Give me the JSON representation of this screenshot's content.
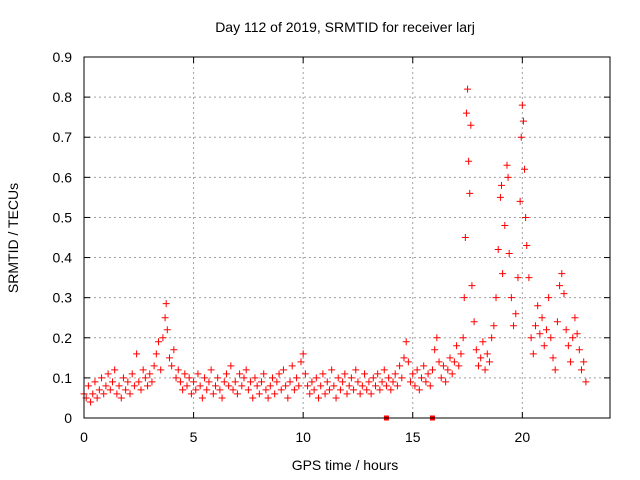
{
  "chart_data": {
    "type": "scatter",
    "title": "Day 112 of 2019, SRMTID for receiver larj",
    "xlabel": "GPS time / hours",
    "ylabel": "SRMTID / TECUs",
    "xlim": [
      0,
      24
    ],
    "ylim": [
      0,
      0.9
    ],
    "xticks": [
      "0",
      "5",
      "10",
      "15",
      "20"
    ],
    "xtick_values": [
      0,
      5,
      10,
      15,
      20
    ],
    "yticks": [
      "0",
      "0.1",
      "0.2",
      "0.3",
      "0.4",
      "0.5",
      "0.6",
      "0.7",
      "0.8",
      "0.9"
    ],
    "ytick_values": [
      0,
      0.1,
      0.2,
      0.3,
      0.4,
      0.5,
      0.6,
      0.7,
      0.8,
      0.9
    ],
    "grid": true,
    "marker": "+",
    "color": "#ff0000",
    "series": [
      {
        "name": "SRMTID",
        "points": [
          [
            0.0,
            0.06
          ],
          [
            0.1,
            0.05
          ],
          [
            0.2,
            0.08
          ],
          [
            0.3,
            0.04
          ],
          [
            0.4,
            0.06
          ],
          [
            0.5,
            0.09
          ],
          [
            0.6,
            0.05
          ],
          [
            0.7,
            0.07
          ],
          [
            0.8,
            0.1
          ],
          [
            0.9,
            0.06
          ],
          [
            1.0,
            0.08
          ],
          [
            1.1,
            0.11
          ],
          [
            1.2,
            0.07
          ],
          [
            1.3,
            0.09
          ],
          [
            1.4,
            0.12
          ],
          [
            1.5,
            0.06
          ],
          [
            1.6,
            0.08
          ],
          [
            1.7,
            0.05
          ],
          [
            1.8,
            0.1
          ],
          [
            1.9,
            0.07
          ],
          [
            2.0,
            0.09
          ],
          [
            2.1,
            0.06
          ],
          [
            2.2,
            0.11
          ],
          [
            2.3,
            0.08
          ],
          [
            2.4,
            0.16
          ],
          [
            2.5,
            0.09
          ],
          [
            2.6,
            0.07
          ],
          [
            2.7,
            0.12
          ],
          [
            2.8,
            0.1
          ],
          [
            2.9,
            0.08
          ],
          [
            3.0,
            0.11
          ],
          [
            3.1,
            0.09
          ],
          [
            3.2,
            0.13
          ],
          [
            3.3,
            0.16
          ],
          [
            3.4,
            0.19
          ],
          [
            3.5,
            0.12
          ],
          [
            3.6,
            0.2
          ],
          [
            3.7,
            0.25
          ],
          [
            3.75,
            0.285
          ],
          [
            3.8,
            0.22
          ],
          [
            3.9,
            0.15
          ],
          [
            4.0,
            0.13
          ],
          [
            4.1,
            0.17
          ],
          [
            4.2,
            0.1
          ],
          [
            4.3,
            0.12
          ],
          [
            4.4,
            0.09
          ],
          [
            4.5,
            0.07
          ],
          [
            4.6,
            0.11
          ],
          [
            4.7,
            0.08
          ],
          [
            4.8,
            0.1
          ],
          [
            4.9,
            0.06
          ],
          [
            5.0,
            0.09
          ],
          [
            5.1,
            0.07
          ],
          [
            5.2,
            0.11
          ],
          [
            5.3,
            0.08
          ],
          [
            5.4,
            0.05
          ],
          [
            5.5,
            0.1
          ],
          [
            5.6,
            0.07
          ],
          [
            5.7,
            0.09
          ],
          [
            5.8,
            0.12
          ],
          [
            5.9,
            0.06
          ],
          [
            6.0,
            0.08
          ],
          [
            6.1,
            0.1
          ],
          [
            6.2,
            0.07
          ],
          [
            6.3,
            0.05
          ],
          [
            6.4,
            0.09
          ],
          [
            6.5,
            0.11
          ],
          [
            6.6,
            0.08
          ],
          [
            6.7,
            0.13
          ],
          [
            6.8,
            0.07
          ],
          [
            6.9,
            0.09
          ],
          [
            7.0,
            0.06
          ],
          [
            7.1,
            0.11
          ],
          [
            7.2,
            0.08
          ],
          [
            7.3,
            0.1
          ],
          [
            7.4,
            0.12
          ],
          [
            7.5,
            0.07
          ],
          [
            7.6,
            0.09
          ],
          [
            7.7,
            0.05
          ],
          [
            7.8,
            0.1
          ],
          [
            7.9,
            0.08
          ],
          [
            8.0,
            0.06
          ],
          [
            8.1,
            0.09
          ],
          [
            8.2,
            0.11
          ],
          [
            8.3,
            0.07
          ],
          [
            8.4,
            0.05
          ],
          [
            8.5,
            0.08
          ],
          [
            8.6,
            0.1
          ],
          [
            8.7,
            0.06
          ],
          [
            8.8,
            0.09
          ],
          [
            8.9,
            0.11
          ],
          [
            9.0,
            0.07
          ],
          [
            9.1,
            0.12
          ],
          [
            9.2,
            0.08
          ],
          [
            9.3,
            0.05
          ],
          [
            9.4,
            0.09
          ],
          [
            9.5,
            0.13
          ],
          [
            9.6,
            0.07
          ],
          [
            9.7,
            0.1
          ],
          [
            9.8,
            0.08
          ],
          [
            9.9,
            0.14
          ],
          [
            10.0,
            0.16
          ],
          [
            10.1,
            0.11
          ],
          [
            10.2,
            0.08
          ],
          [
            10.3,
            0.06
          ],
          [
            10.4,
            0.09
          ],
          [
            10.5,
            0.07
          ],
          [
            10.6,
            0.1
          ],
          [
            10.7,
            0.05
          ],
          [
            10.8,
            0.08
          ],
          [
            10.9,
            0.11
          ],
          [
            11.0,
            0.06
          ],
          [
            11.1,
            0.09
          ],
          [
            11.2,
            0.07
          ],
          [
            11.3,
            0.12
          ],
          [
            11.4,
            0.08
          ],
          [
            11.5,
            0.05
          ],
          [
            11.6,
            0.1
          ],
          [
            11.7,
            0.07
          ],
          [
            11.8,
            0.09
          ],
          [
            11.9,
            0.11
          ],
          [
            12.0,
            0.06
          ],
          [
            12.1,
            0.08
          ],
          [
            12.2,
            0.1
          ],
          [
            12.3,
            0.07
          ],
          [
            12.4,
            0.12
          ],
          [
            12.5,
            0.09
          ],
          [
            12.6,
            0.06
          ],
          [
            12.7,
            0.08
          ],
          [
            12.8,
            0.11
          ],
          [
            12.9,
            0.07
          ],
          [
            13.0,
            0.09
          ],
          [
            13.1,
            0.06
          ],
          [
            13.2,
            0.1
          ],
          [
            13.3,
            0.08
          ],
          [
            13.4,
            0.11
          ],
          [
            13.5,
            0.07
          ],
          [
            13.6,
            0.09
          ],
          [
            13.7,
            0.12
          ],
          [
            13.8,
            0.08
          ],
          [
            13.9,
            0.1
          ],
          [
            14.0,
            0.07
          ],
          [
            14.1,
            0.09
          ],
          [
            14.2,
            0.11
          ],
          [
            14.3,
            0.08
          ],
          [
            14.4,
            0.13
          ],
          [
            14.5,
            0.1
          ],
          [
            14.6,
            0.15
          ],
          [
            14.7,
            0.19
          ],
          [
            14.8,
            0.14
          ],
          [
            14.9,
            0.09
          ],
          [
            15.0,
            0.11
          ],
          [
            15.1,
            0.08
          ],
          [
            15.2,
            0.12
          ],
          [
            15.3,
            0.07
          ],
          [
            15.4,
            0.1
          ],
          [
            15.5,
            0.13
          ],
          [
            15.6,
            0.09
          ],
          [
            15.7,
            0.11
          ],
          [
            15.8,
            0.08
          ],
          [
            15.9,
            0.12
          ],
          [
            16.0,
            0.17
          ],
          [
            16.1,
            0.2
          ],
          [
            16.2,
            0.14
          ],
          [
            16.3,
            0.1
          ],
          [
            16.4,
            0.13
          ],
          [
            16.5,
            0.09
          ],
          [
            16.6,
            0.12
          ],
          [
            16.7,
            0.15
          ],
          [
            16.8,
            0.11
          ],
          [
            16.9,
            0.14
          ],
          [
            17.0,
            0.18
          ],
          [
            17.1,
            0.13
          ],
          [
            17.2,
            0.16
          ],
          [
            17.3,
            0.2
          ],
          [
            17.35,
            0.3
          ],
          [
            17.4,
            0.45
          ],
          [
            17.45,
            0.76
          ],
          [
            17.5,
            0.82
          ],
          [
            17.55,
            0.64
          ],
          [
            17.6,
            0.56
          ],
          [
            17.65,
            0.73
          ],
          [
            17.7,
            0.33
          ],
          [
            17.8,
            0.24
          ],
          [
            17.9,
            0.17
          ],
          [
            18.0,
            0.13
          ],
          [
            18.1,
            0.15
          ],
          [
            18.2,
            0.19
          ],
          [
            18.3,
            0.12
          ],
          [
            18.4,
            0.16
          ],
          [
            18.5,
            0.14
          ],
          [
            18.6,
            0.2
          ],
          [
            18.7,
            0.23
          ],
          [
            18.8,
            0.3
          ],
          [
            18.9,
            0.42
          ],
          [
            19.0,
            0.55
          ],
          [
            19.05,
            0.58
          ],
          [
            19.1,
            0.36
          ],
          [
            19.2,
            0.48
          ],
          [
            19.3,
            0.63
          ],
          [
            19.35,
            0.6
          ],
          [
            19.4,
            0.41
          ],
          [
            19.5,
            0.3
          ],
          [
            19.6,
            0.23
          ],
          [
            19.7,
            0.26
          ],
          [
            19.8,
            0.35
          ],
          [
            19.9,
            0.54
          ],
          [
            19.95,
            0.7
          ],
          [
            20.0,
            0.78
          ],
          [
            20.05,
            0.74
          ],
          [
            20.1,
            0.62
          ],
          [
            20.15,
            0.5
          ],
          [
            20.2,
            0.43
          ],
          [
            20.3,
            0.35
          ],
          [
            20.4,
            0.2
          ],
          [
            20.5,
            0.16
          ],
          [
            20.6,
            0.23
          ],
          [
            20.7,
            0.28
          ],
          [
            20.8,
            0.21
          ],
          [
            20.9,
            0.25
          ],
          [
            21.0,
            0.18
          ],
          [
            21.1,
            0.22
          ],
          [
            21.2,
            0.3
          ],
          [
            21.3,
            0.2
          ],
          [
            21.4,
            0.15
          ],
          [
            21.5,
            0.12
          ],
          [
            21.6,
            0.24
          ],
          [
            21.7,
            0.33
          ],
          [
            21.8,
            0.36
          ],
          [
            21.9,
            0.31
          ],
          [
            22.0,
            0.22
          ],
          [
            22.1,
            0.18
          ],
          [
            22.2,
            0.14
          ],
          [
            22.3,
            0.2
          ],
          [
            22.4,
            0.25
          ],
          [
            22.5,
            0.21
          ],
          [
            22.6,
            0.17
          ],
          [
            22.7,
            0.12
          ],
          [
            22.8,
            0.14
          ],
          [
            22.9,
            0.09
          ]
        ]
      }
    ],
    "zero_markers": [
      13.8,
      15.9
    ]
  }
}
